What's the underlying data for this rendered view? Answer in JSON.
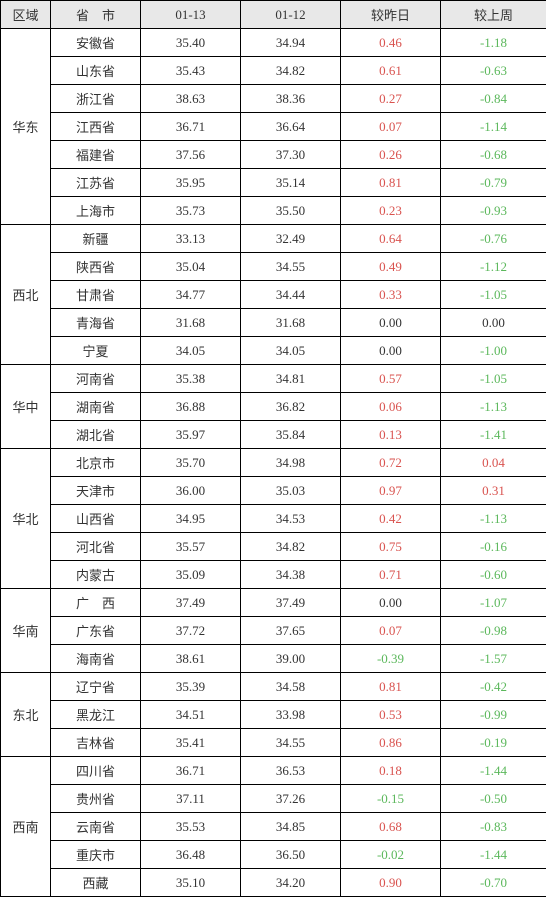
{
  "headers": {
    "region": "区域",
    "province": "省　市",
    "date1": "01-13",
    "date2": "01-12",
    "dayDelta": "较昨日",
    "weekDelta": "较上周"
  },
  "colors": {
    "positive": "#d9534f",
    "negative": "#5cb85c",
    "neutral": "#333333",
    "headerBg": "#e8e8e8",
    "border": "#000000"
  },
  "regions": [
    {
      "name": "华东",
      "rows": [
        {
          "prov": "安徽省",
          "d1": "35.40",
          "d2": "34.94",
          "dd": "0.46",
          "dw": "-1.18"
        },
        {
          "prov": "山东省",
          "d1": "35.43",
          "d2": "34.82",
          "dd": "0.61",
          "dw": "-0.63"
        },
        {
          "prov": "浙江省",
          "d1": "38.63",
          "d2": "38.36",
          "dd": "0.27",
          "dw": "-0.84"
        },
        {
          "prov": "江西省",
          "d1": "36.71",
          "d2": "36.64",
          "dd": "0.07",
          "dw": "-1.14"
        },
        {
          "prov": "福建省",
          "d1": "37.56",
          "d2": "37.30",
          "dd": "0.26",
          "dw": "-0.68"
        },
        {
          "prov": "江苏省",
          "d1": "35.95",
          "d2": "35.14",
          "dd": "0.81",
          "dw": "-0.79"
        },
        {
          "prov": "上海市",
          "d1": "35.73",
          "d2": "35.50",
          "dd": "0.23",
          "dw": "-0.93"
        }
      ]
    },
    {
      "name": "西北",
      "rows": [
        {
          "prov": "新疆",
          "d1": "33.13",
          "d2": "32.49",
          "dd": "0.64",
          "dw": "-0.76"
        },
        {
          "prov": "陕西省",
          "d1": "35.04",
          "d2": "34.55",
          "dd": "0.49",
          "dw": "-1.12"
        },
        {
          "prov": "甘肃省",
          "d1": "34.77",
          "d2": "34.44",
          "dd": "0.33",
          "dw": "-1.05"
        },
        {
          "prov": "青海省",
          "d1": "31.68",
          "d2": "31.68",
          "dd": "0.00",
          "dw": "0.00"
        },
        {
          "prov": "宁夏",
          "d1": "34.05",
          "d2": "34.05",
          "dd": "0.00",
          "dw": "-1.00"
        }
      ]
    },
    {
      "name": "华中",
      "rows": [
        {
          "prov": "河南省",
          "d1": "35.38",
          "d2": "34.81",
          "dd": "0.57",
          "dw": "-1.05"
        },
        {
          "prov": "湖南省",
          "d1": "36.88",
          "d2": "36.82",
          "dd": "0.06",
          "dw": "-1.13"
        },
        {
          "prov": "湖北省",
          "d1": "35.97",
          "d2": "35.84",
          "dd": "0.13",
          "dw": "-1.41"
        }
      ]
    },
    {
      "name": "华北",
      "rows": [
        {
          "prov": "北京市",
          "d1": "35.70",
          "d2": "34.98",
          "dd": "0.72",
          "dw": "0.04"
        },
        {
          "prov": "天津市",
          "d1": "36.00",
          "d2": "35.03",
          "dd": "0.97",
          "dw": "0.31"
        },
        {
          "prov": "山西省",
          "d1": "34.95",
          "d2": "34.53",
          "dd": "0.42",
          "dw": "-1.13"
        },
        {
          "prov": "河北省",
          "d1": "35.57",
          "d2": "34.82",
          "dd": "0.75",
          "dw": "-0.16"
        },
        {
          "prov": "内蒙古",
          "d1": "35.09",
          "d2": "34.38",
          "dd": "0.71",
          "dw": "-0.60"
        }
      ]
    },
    {
      "name": "华南",
      "rows": [
        {
          "prov": "广　西",
          "d1": "37.49",
          "d2": "37.49",
          "dd": "0.00",
          "dw": "-1.07"
        },
        {
          "prov": "广东省",
          "d1": "37.72",
          "d2": "37.65",
          "dd": "0.07",
          "dw": "-0.98"
        },
        {
          "prov": "海南省",
          "d1": "38.61",
          "d2": "39.00",
          "dd": "-0.39",
          "dw": "-1.57"
        }
      ]
    },
    {
      "name": "东北",
      "rows": [
        {
          "prov": "辽宁省",
          "d1": "35.39",
          "d2": "34.58",
          "dd": "0.81",
          "dw": "-0.42"
        },
        {
          "prov": "黑龙江",
          "d1": "34.51",
          "d2": "33.98",
          "dd": "0.53",
          "dw": "-0.99"
        },
        {
          "prov": "吉林省",
          "d1": "35.41",
          "d2": "34.55",
          "dd": "0.86",
          "dw": "-0.19"
        }
      ]
    },
    {
      "name": "西南",
      "rows": [
        {
          "prov": "四川省",
          "d1": "36.71",
          "d2": "36.53",
          "dd": "0.18",
          "dw": "-1.44"
        },
        {
          "prov": "贵州省",
          "d1": "37.11",
          "d2": "37.26",
          "dd": "-0.15",
          "dw": "-0.50"
        },
        {
          "prov": "云南省",
          "d1": "35.53",
          "d2": "34.85",
          "dd": "0.68",
          "dw": "-0.83"
        },
        {
          "prov": "重庆市",
          "d1": "36.48",
          "d2": "36.50",
          "dd": "-0.02",
          "dw": "-1.44"
        },
        {
          "prov": "西藏",
          "d1": "35.10",
          "d2": "34.20",
          "dd": "0.90",
          "dw": "-0.70"
        }
      ]
    }
  ]
}
